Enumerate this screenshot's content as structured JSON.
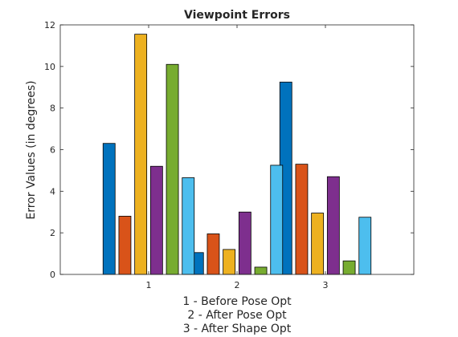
{
  "chart_data": {
    "type": "bar",
    "title": "Viewpoint Errors",
    "ylabel": "Error Values (in degrees)",
    "xlabel_lines": [
      "1 - Before Pose Opt",
      "2 - After Pose Opt",
      "3 - After Shape Opt"
    ],
    "categories": [
      "1",
      "2",
      "3"
    ],
    "ylim": [
      0,
      12
    ],
    "yticks": [
      0,
      2,
      4,
      6,
      8,
      10,
      12
    ],
    "grid": false,
    "legend": "none",
    "series": [
      {
        "color": "#0072BD",
        "values": [
          6.3,
          1.05,
          9.25
        ]
      },
      {
        "color": "#D95319",
        "values": [
          2.8,
          1.95,
          5.3
        ]
      },
      {
        "color": "#EDB120",
        "values": [
          11.55,
          1.2,
          2.95
        ]
      },
      {
        "color": "#7E2F8E",
        "values": [
          5.2,
          3.0,
          4.7
        ]
      },
      {
        "color": "#77AC30",
        "values": [
          10.1,
          0.35,
          0.65
        ]
      },
      {
        "color": "#4DBEEE",
        "values": [
          4.65,
          5.25,
          2.75
        ]
      }
    ]
  }
}
